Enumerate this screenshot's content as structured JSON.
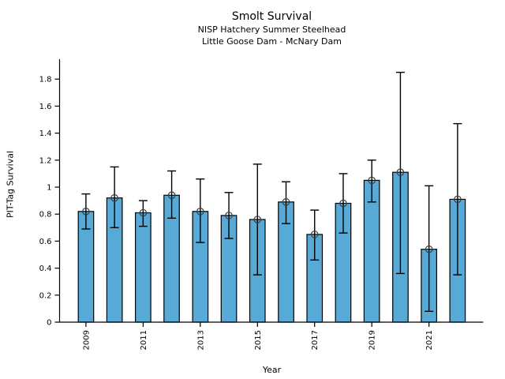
{
  "figure": {
    "title": "Smolt Survival",
    "subtitle1": "NISP Hatchery Summer Steelhead",
    "subtitle2": "Little Goose Dam - McNary Dam"
  },
  "chart_data": {
    "type": "bar",
    "title": "Smolt Survival",
    "subtitles": [
      "NISP Hatchery Summer Steelhead",
      "Little Goose Dam - McNary Dam"
    ],
    "xlabel": "Year",
    "ylabel": "PIT-Tag Survival",
    "categories": [
      2009,
      2010,
      2011,
      2012,
      2013,
      2014,
      2015,
      2016,
      2017,
      2018,
      2019,
      2020,
      2021,
      2022
    ],
    "values": [
      0.82,
      0.92,
      0.81,
      0.94,
      0.82,
      0.79,
      0.76,
      0.89,
      0.65,
      0.88,
      1.05,
      1.11,
      0.54,
      0.91
    ],
    "error_low": [
      0.69,
      0.7,
      0.71,
      0.77,
      0.59,
      0.62,
      0.35,
      0.73,
      0.46,
      0.66,
      0.89,
      0.36,
      0.08,
      0.35
    ],
    "error_high": [
      0.95,
      1.15,
      0.9,
      1.12,
      1.06,
      0.96,
      1.17,
      1.04,
      0.83,
      1.1,
      1.2,
      1.85,
      1.01,
      1.47
    ],
    "ylim": [
      0,
      1.95
    ],
    "ytick_values": [
      0,
      0.2,
      0.4,
      0.6,
      0.8,
      1.0,
      1.2,
      1.4,
      1.6,
      1.8
    ],
    "ytick_labels": [
      "0",
      "0.2",
      "0.4",
      "0.6",
      "0.8",
      "1",
      "1.2",
      "1.4",
      "1.6",
      "1.8"
    ],
    "xtick_indices": [
      0,
      2,
      4,
      6,
      8,
      10,
      12
    ],
    "xtick_labels": [
      "2009",
      "2011",
      "2013",
      "2015",
      "2017",
      "2019",
      "2021"
    ],
    "grid": false,
    "legend": null,
    "bar_color": "#58aad6",
    "bar_edge_color": "#000000",
    "error_color": "#000000",
    "marker_edge_color": "#3d3d3d",
    "axis_color": "#000000",
    "background_color": "#ffffff"
  }
}
